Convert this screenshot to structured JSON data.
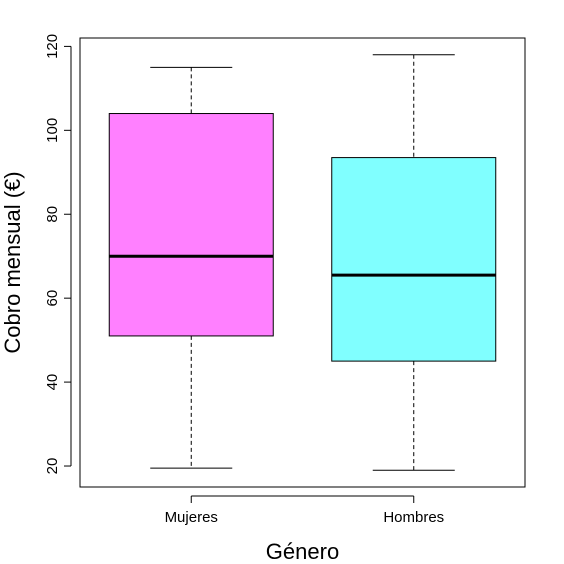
{
  "chart_data": {
    "type": "boxplot",
    "title": "",
    "xlabel": "Género",
    "ylabel": "Cobro mensual (€)",
    "ylim": [
      15,
      122
    ],
    "yticks": [
      20,
      40,
      60,
      80,
      100,
      120
    ],
    "grid": false,
    "categories": [
      "Mujeres",
      "Hombres"
    ],
    "boxes": [
      {
        "category": "Mujeres",
        "min": 19.5,
        "q1": 51,
        "median": 70,
        "q3": 104,
        "max": 115,
        "color": "#ff80ff"
      },
      {
        "category": "Hombres",
        "min": 19,
        "q1": 45,
        "median": 65.5,
        "q3": 93.5,
        "max": 118,
        "color": "#80ffff"
      }
    ]
  }
}
